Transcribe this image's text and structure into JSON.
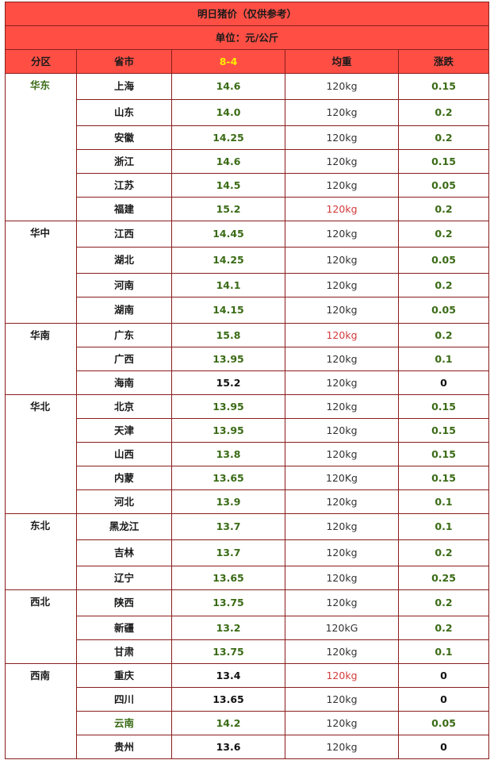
{
  "title": "明日猪价（仅供参考）",
  "unit": "单位：元/公斤",
  "columns": [
    "分区",
    "省市",
    "8-4",
    "均重",
    "涨跌"
  ],
  "regions": [
    {
      "name": "华东",
      "rows": [
        {
          "province": "上海",
          "price": "14.6",
          "weight": "120kg",
          "change": "0.15"
        },
        {
          "province": "山东",
          "price": "14.0",
          "weight": "120kg",
          "change": "0.2"
        },
        {
          "province": "安徽",
          "price": "14.25",
          "weight": "120kg",
          "change": "0.2"
        },
        {
          "province": "浙江",
          "price": "14.6",
          "weight": "120kg",
          "change": "0.15"
        },
        {
          "province": "江苏",
          "price": "14.5",
          "weight": "120kg",
          "change": "0.05"
        },
        {
          "province": "福建",
          "price": "15.2",
          "weight": "120kg",
          "change": "0.2"
        }
      ]
    },
    {
      "name": "华中",
      "rows": [
        {
          "province": "江西",
          "price": "14.45",
          "weight": "120kg",
          "change": "0.2"
        },
        {
          "province": "湖北",
          "price": "14.25",
          "weight": "120kg",
          "change": "0.05"
        },
        {
          "province": "河南",
          "price": "14.1",
          "weight": "120kg",
          "change": "0.2"
        },
        {
          "province": "湖南",
          "price": "14.15",
          "weight": "120kg",
          "change": "0.05"
        }
      ]
    },
    {
      "name": "华南",
      "rows": [
        {
          "province": "广东",
          "price": "15.8",
          "weight": "120kg",
          "change": "0.2"
        },
        {
          "province": "广西",
          "price": "13.95",
          "weight": "120kg",
          "change": "0.1"
        },
        {
          "province": "海南",
          "price": "15.2",
          "weight": "120kg",
          "change": "0"
        }
      ]
    },
    {
      "name": "华北",
      "rows": [
        {
          "province": "北京",
          "price": "13.95",
          "weight": "120kg",
          "change": "0.15"
        },
        {
          "province": "天津",
          "price": "13.95",
          "weight": "120kg",
          "change": "0.15"
        },
        {
          "province": "山西",
          "price": "13.8",
          "weight": "120kg",
          "change": "0.15"
        },
        {
          "province": "内蒙",
          "price": "13.65",
          "weight": "120Kg",
          "change": "0.15"
        },
        {
          "province": "河北",
          "price": "13.9",
          "weight": "120kg",
          "change": "0.1"
        }
      ]
    },
    {
      "name": "东北",
      "rows": [
        {
          "province": "黑龙江",
          "price": "13.7",
          "weight": "120kg",
          "change": "0.1"
        },
        {
          "province": "吉林",
          "price": "13.7",
          "weight": "120kg",
          "change": "0.2"
        },
        {
          "province": "辽宁",
          "price": "13.65",
          "weight": "120kg",
          "change": "0.25"
        }
      ]
    },
    {
      "name": "西北",
      "rows": [
        {
          "province": "陕西",
          "price": "13.75",
          "weight": "120kg",
          "change": "0.2"
        },
        {
          "province": "新疆",
          "price": "13.2",
          "weight": "120kG",
          "change": "0.2"
        },
        {
          "province": "甘肃",
          "price": "13.75",
          "weight": "120kg",
          "change": "0.1"
        }
      ]
    },
    {
      "name": "西南",
      "rows": [
        {
          "province": "重庆",
          "price": "13.4",
          "weight": "120kg",
          "change": "0"
        },
        {
          "province": "四川",
          "price": "13.65",
          "weight": "120kg",
          "change": "0"
        },
        {
          "province": "云南",
          "price": "14.2",
          "weight": "120kg",
          "change": "0.05"
        },
        {
          "province": "贵州",
          "price": "13.6",
          "weight": "120kg",
          "change": "0"
        }
      ]
    }
  ],
  "colors": {
    "header_bg": "#ff4f45",
    "border": "#8a1d1d",
    "green_text": "#3a6b16",
    "red_text": "#d33b3b",
    "date_text": "#ffee00"
  }
}
